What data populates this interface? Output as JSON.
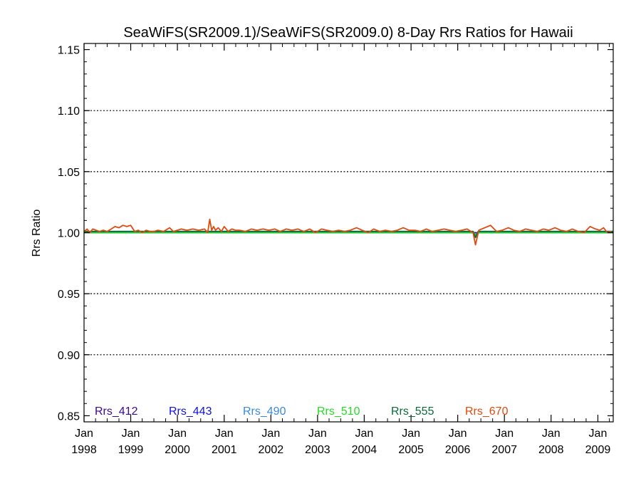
{
  "chart_data": {
    "type": "line",
    "title": "SeaWiFS(SR2009.1)/SeaWiFS(SR2009.0) 8-Day Rrs Ratios for Hawaii",
    "xlabel": "",
    "ylabel": "Rrs Ratio",
    "xlim": [
      "1998-01-01",
      "2009-05-01"
    ],
    "ylim": [
      0.845,
      1.155
    ],
    "y_ticks": [
      "0.85",
      "0.90",
      "0.95",
      "1.00",
      "1.05",
      "1.10",
      "1.15"
    ],
    "y_tick_values": [
      0.85,
      0.9,
      0.95,
      1.0,
      1.05,
      1.1,
      1.15
    ],
    "y_grid": [
      0.9,
      0.95,
      1.0,
      1.05,
      1.1
    ],
    "x_tick_dates": [
      "1998-01-01",
      "1999-01-01",
      "2000-01-01",
      "2001-01-01",
      "2002-01-01",
      "2003-01-01",
      "2004-01-01",
      "2005-01-01",
      "2006-01-01",
      "2007-01-01",
      "2008-01-01",
      "2009-01-01"
    ],
    "x_ticks": [
      {
        "month": "Jan",
        "year": "1998"
      },
      {
        "month": "Jan",
        "year": "1999"
      },
      {
        "month": "Jan",
        "year": "2000"
      },
      {
        "month": "Jan",
        "year": "2001"
      },
      {
        "month": "Jan",
        "year": "2002"
      },
      {
        "month": "Jan",
        "year": "2003"
      },
      {
        "month": "Jan",
        "year": "2004"
      },
      {
        "month": "Jan",
        "year": "2005"
      },
      {
        "month": "Jan",
        "year": "2006"
      },
      {
        "month": "Jan",
        "year": "2007"
      },
      {
        "month": "Jan",
        "year": "2008"
      },
      {
        "month": "Jan",
        "year": "2009"
      }
    ],
    "legend_placement": "bottom",
    "series": [
      {
        "name": "Rrs_412",
        "color": "#3a0a8c",
        "x": [
          "1998-01-01",
          "2000-01-01",
          "2002-01-01",
          "2004-01-01",
          "2006-01-01",
          "2008-01-01",
          "2009-05-01"
        ],
        "values": [
          1.0,
          1.0,
          1.0,
          1.0,
          1.0,
          1.0,
          1.0
        ]
      },
      {
        "name": "Rrs_443",
        "color": "#1010e0",
        "x": [
          "1998-01-01",
          "2000-09-01",
          "2000-09-20",
          "2000-10-20",
          "2006-05-01",
          "2006-05-20",
          "2006-06-10",
          "2009-05-01"
        ],
        "values": [
          1.0,
          1.0,
          1.001,
          1.0,
          1.0,
          0.998,
          1.0,
          1.0
        ]
      },
      {
        "name": "Rrs_490",
        "color": "#3a8ad8",
        "x": [
          "1998-01-01",
          "2003-01-01",
          "2006-05-01",
          "2006-05-20",
          "2006-06-10",
          "2009-05-01"
        ],
        "values": [
          1.001,
          1.001,
          1.001,
          0.998,
          1.001,
          1.001
        ]
      },
      {
        "name": "Rrs_510",
        "color": "#22dd22",
        "x": [
          "1998-01-01",
          "2006-05-01",
          "2006-05-20",
          "2006-06-10",
          "2009-05-01"
        ],
        "values": [
          1.0,
          1.0,
          0.998,
          1.0,
          1.0
        ]
      },
      {
        "name": "Rrs_555",
        "color": "#0a6a3a",
        "x": [
          "1998-01-01",
          "1998-06-01",
          "1999-01-01",
          "2000-01-01",
          "2001-01-01",
          "2002-01-01",
          "2003-01-01",
          "2004-01-01",
          "2005-01-01",
          "2006-01-01",
          "2006-05-01",
          "2006-05-20",
          "2006-06-10",
          "2007-01-01",
          "2008-01-01",
          "2009-01-01",
          "2009-05-01"
        ],
        "values": [
          1.001,
          1.001,
          1.001,
          1.001,
          1.001,
          1.001,
          1.001,
          1.001,
          1.001,
          1.001,
          1.001,
          0.996,
          1.001,
          1.001,
          1.001,
          1.001,
          1.001
        ]
      },
      {
        "name": "Rrs_670",
        "color": "#e04a0a",
        "x": [
          "1998-01-01",
          "1998-01-25",
          "1998-02-15",
          "1998-03-10",
          "1998-04-05",
          "1998-05-01",
          "1998-06-01",
          "1998-07-01",
          "1998-08-01",
          "1998-09-01",
          "1998-10-01",
          "1998-11-01",
          "1998-12-01",
          "1999-01-01",
          "1999-02-01",
          "1999-03-01",
          "1999-04-01",
          "1999-05-01",
          "1999-06-01",
          "1999-07-01",
          "1999-08-01",
          "1999-09-15",
          "1999-11-01",
          "1999-12-01",
          "2000-01-01",
          "2000-02-01",
          "2000-03-15",
          "2000-05-01",
          "2000-06-15",
          "2000-08-01",
          "2000-08-25",
          "2000-09-10",
          "2000-09-25",
          "2000-10-10",
          "2000-10-25",
          "2000-11-15",
          "2000-12-10",
          "2001-01-01",
          "2001-02-01",
          "2001-03-01",
          "2001-04-01",
          "2001-05-01",
          "2001-06-15",
          "2001-08-01",
          "2001-09-15",
          "2001-11-01",
          "2001-12-15",
          "2002-02-01",
          "2002-03-15",
          "2002-05-01",
          "2002-06-15",
          "2002-08-01",
          "2002-09-15",
          "2002-11-01",
          "2002-12-15",
          "2003-02-01",
          "2003-03-15",
          "2003-05-01",
          "2003-06-15",
          "2003-08-01",
          "2003-09-15",
          "2003-11-01",
          "2003-12-15",
          "2004-02-01",
          "2004-03-15",
          "2004-05-01",
          "2004-06-15",
          "2004-08-01",
          "2004-09-15",
          "2004-11-01",
          "2004-12-15",
          "2005-02-01",
          "2005-03-15",
          "2005-05-01",
          "2005-06-15",
          "2005-08-01",
          "2005-09-15",
          "2005-11-01",
          "2005-12-15",
          "2006-02-01",
          "2006-03-15",
          "2006-05-01",
          "2006-05-20",
          "2006-06-15",
          "2006-08-01",
          "2006-09-15",
          "2006-11-01",
          "2006-12-15",
          "2007-02-01",
          "2007-03-15",
          "2007-05-01",
          "2007-06-15",
          "2007-08-01",
          "2007-09-15",
          "2007-11-01",
          "2007-12-15",
          "2008-02-01",
          "2008-03-15",
          "2008-05-01",
          "2008-06-15",
          "2008-08-01",
          "2008-09-15",
          "2008-11-01",
          "2008-12-15",
          "2009-01-15",
          "2009-02-15",
          "2009-03-15",
          "2009-04-15"
        ],
        "values": [
          1.001,
          1.003,
          1.0,
          1.003,
          1.002,
          1.001,
          1.002,
          1.001,
          1.003,
          1.005,
          1.004,
          1.006,
          1.005,
          1.006,
          1.001,
          1.002,
          1.0,
          1.002,
          1.001,
          1.001,
          1.002,
          1.001,
          1.004,
          1.001,
          1.002,
          1.003,
          1.002,
          1.003,
          1.002,
          1.003,
          1.0,
          1.011,
          1.002,
          1.005,
          1.002,
          1.004,
          1.001,
          1.005,
          1.001,
          1.003,
          1.002,
          1.002,
          1.001,
          1.003,
          1.002,
          1.003,
          1.002,
          1.003,
          1.001,
          1.003,
          1.002,
          1.003,
          1.001,
          1.003,
          1.0,
          1.003,
          1.002,
          1.001,
          1.002,
          1.001,
          1.002,
          1.004,
          1.002,
          1.0,
          1.003,
          1.001,
          1.002,
          1.001,
          1.002,
          1.004,
          1.002,
          1.002,
          1.001,
          1.003,
          1.001,
          1.002,
          1.003,
          1.002,
          1.001,
          1.002,
          1.003,
          1.0,
          0.99,
          1.002,
          1.004,
          1.006,
          1.001,
          1.002,
          1.004,
          1.002,
          1.001,
          1.003,
          1.002,
          1.001,
          1.003,
          1.002,
          1.004,
          1.002,
          1.001,
          1.003,
          1.001,
          1.0,
          1.005,
          1.003,
          1.002,
          1.004,
          1.0,
          1.001
        ]
      }
    ]
  }
}
